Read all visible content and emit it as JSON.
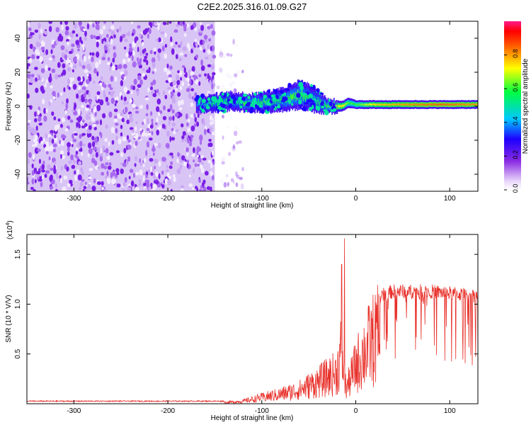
{
  "title": "C2E2.2025.316.01.09.G27",
  "colors": {
    "snr_line": "#e8302a",
    "background": "#ffffff",
    "axis": "#000000"
  },
  "chart_data": [
    {
      "type": "heatmap",
      "name": "spectrogram",
      "xlabel": "Height of straight line (km)",
      "ylabel": "Frequency (Hz)",
      "xlim": [
        -350,
        130
      ],
      "ylim": [
        -50,
        50
      ],
      "xticks": [
        -300,
        -200,
        -100,
        0,
        100
      ],
      "yticks": [
        -40,
        -20,
        0,
        20,
        40
      ],
      "noise_region": {
        "x_from": -350,
        "x_to": -150,
        "freq_span": [
          -50,
          50
        ],
        "amplitude": 0.05
      },
      "signal_track": [
        {
          "x": -170,
          "freq": 1,
          "amplitude": 0.3,
          "width": 4
        },
        {
          "x": -150,
          "freq": 2,
          "amplitude": 0.45,
          "width": 5
        },
        {
          "x": -130,
          "freq": 3,
          "amplitude": 0.45,
          "width": 5
        },
        {
          "x": -110,
          "freq": 2,
          "amplitude": 0.5,
          "width": 5
        },
        {
          "x": -90,
          "freq": 3,
          "amplitude": 0.45,
          "width": 6
        },
        {
          "x": -70,
          "freq": 5,
          "amplitude": 0.5,
          "width": 7
        },
        {
          "x": -60,
          "freq": 7,
          "amplitude": 0.5,
          "width": 8
        },
        {
          "x": -45,
          "freq": 4,
          "amplitude": 0.45,
          "width": 7
        },
        {
          "x": -30,
          "freq": 0,
          "amplitude": 0.5,
          "width": 4
        },
        {
          "x": -15,
          "freq": 0,
          "amplitude": 0.75,
          "width": 3
        },
        {
          "x": -8,
          "freq": 2,
          "amplitude": 0.6,
          "width": 3
        },
        {
          "x": 0,
          "freq": 1,
          "amplitude": 0.6,
          "width": 2.5
        },
        {
          "x": 20,
          "freq": 1,
          "amplitude": 0.75,
          "width": 2.5
        },
        {
          "x": 50,
          "freq": 1,
          "amplitude": 0.8,
          "width": 2.5
        },
        {
          "x": 90,
          "freq": 1,
          "amplitude": 0.85,
          "width": 2.5
        },
        {
          "x": 130,
          "freq": 1,
          "amplitude": 0.8,
          "width": 2.5
        }
      ],
      "colorbar": {
        "label": "Normalized spectral amplitude",
        "range": [
          0,
          1
        ],
        "ticks": [
          "0.0",
          "0.2",
          "0.4",
          "0.6",
          "0.8"
        ]
      }
    },
    {
      "type": "line",
      "name": "snr",
      "xlabel": "Height of straight line (km)",
      "ylabel": "SNR (10 * V/V)",
      "scale_label": "(x10",
      "scale_exponent": "4",
      "xlim": [
        -350,
        130
      ],
      "ylim": [
        0,
        1.7
      ],
      "xticks": [
        -300,
        -200,
        -100,
        0,
        100
      ],
      "yticks": [
        0.5,
        1.0,
        1.5
      ],
      "ytick_labels": [
        "0.5",
        "1.0",
        "1.5"
      ],
      "envelope": {
        "x": [
          -350,
          -140,
          -120,
          -100,
          -80,
          -60,
          -40,
          -20,
          -15,
          -12,
          -10,
          0,
          10,
          20,
          30,
          40,
          60,
          80,
          100,
          130
        ],
        "y": [
          0.02,
          0.02,
          0.04,
          0.1,
          0.15,
          0.22,
          0.35,
          0.5,
          0.9,
          0.35,
          0.25,
          0.6,
          0.85,
          1.05,
          1.17,
          1.2,
          1.2,
          1.2,
          1.18,
          1.15
        ]
      },
      "peaks": [
        {
          "x": -12,
          "y": 1.66
        },
        {
          "x": -15,
          "y": 1.4
        }
      ]
    }
  ]
}
